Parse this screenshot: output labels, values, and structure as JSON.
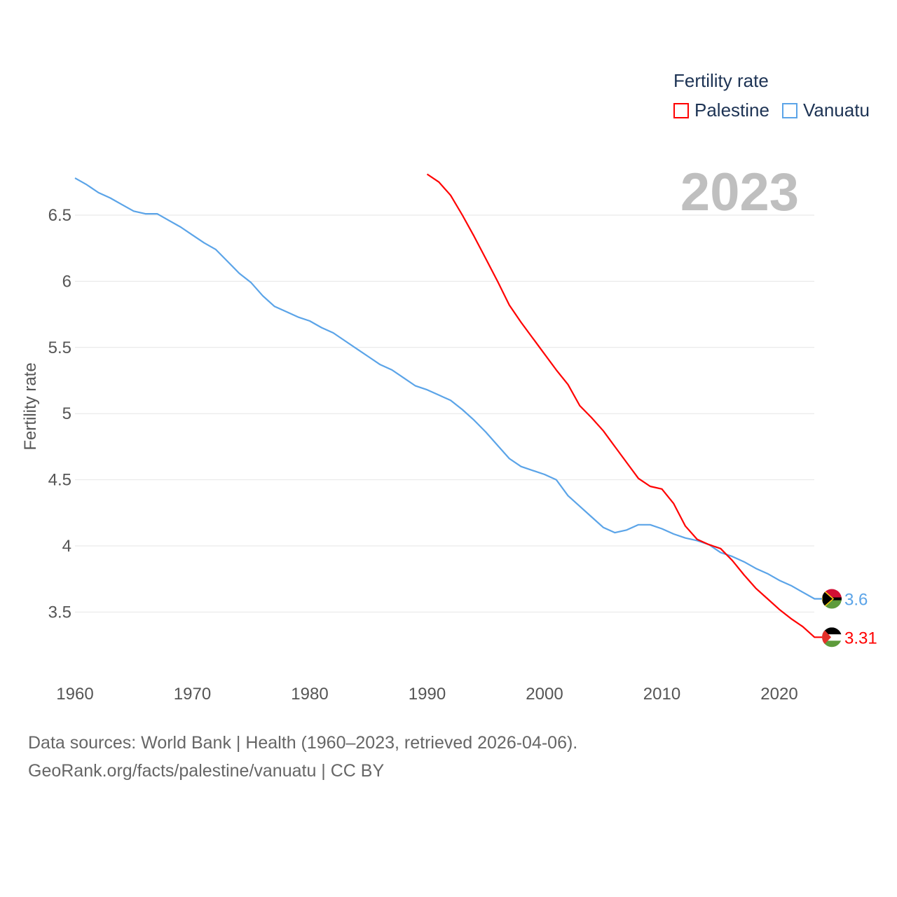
{
  "legend": {
    "title": "Fertility rate"
  },
  "footer": {
    "line1": "Data sources: World Bank | Health (1960–2023, retrieved 2026-04-06).",
    "line2": "GeoRank.org/facts/palestine/vanuatu | CC BY"
  },
  "chart_data": {
    "type": "line",
    "title": "",
    "year_label": "2023",
    "xlabel": "",
    "ylabel": "Fertility rate",
    "xlim": [
      1960,
      2023
    ],
    "ylim": [
      3.2,
      6.85
    ],
    "xticks": [
      1960,
      1970,
      1980,
      1990,
      2000,
      2010,
      2020
    ],
    "yticks": [
      3.5,
      4,
      4.5,
      5,
      5.5,
      6,
      6.5
    ],
    "ytick_labels": [
      "3.5",
      "4",
      "4.5",
      "5",
      "5.5",
      "6",
      "6.5"
    ],
    "xtick_labels": [
      "1960",
      "1970",
      "1980",
      "1990",
      "2000",
      "2010",
      "2020"
    ],
    "grid": true,
    "legend_position": "top-right",
    "series": [
      {
        "name": "Palestine",
        "color": "#ff0000",
        "end_label": "3.31",
        "flag": "palestine-flag",
        "x": [
          1990,
          1991,
          1992,
          1993,
          1994,
          1995,
          1996,
          1997,
          1998,
          1999,
          2000,
          2001,
          2002,
          2003,
          2004,
          2005,
          2006,
          2007,
          2008,
          2009,
          2010,
          2011,
          2012,
          2013,
          2014,
          2015,
          2016,
          2017,
          2018,
          2019,
          2020,
          2021,
          2022,
          2023
        ],
        "values": [
          6.81,
          6.75,
          6.65,
          6.5,
          6.34,
          6.17,
          6.0,
          5.82,
          5.69,
          5.57,
          5.45,
          5.33,
          5.22,
          5.06,
          4.97,
          4.87,
          4.75,
          4.63,
          4.51,
          4.45,
          4.43,
          4.32,
          4.15,
          4.05,
          4.01,
          3.98,
          3.89,
          3.78,
          3.68,
          3.6,
          3.52,
          3.45,
          3.39,
          3.31
        ]
      },
      {
        "name": "Vanuatu",
        "color": "#5ba4e8",
        "end_label": "3.6",
        "flag": "vanuatu-flag",
        "x": [
          1960,
          1961,
          1962,
          1963,
          1964,
          1965,
          1966,
          1967,
          1968,
          1969,
          1970,
          1971,
          1972,
          1973,
          1974,
          1975,
          1976,
          1977,
          1978,
          1979,
          1980,
          1981,
          1982,
          1983,
          1984,
          1985,
          1986,
          1987,
          1988,
          1989,
          1990,
          1991,
          1992,
          1993,
          1994,
          1995,
          1996,
          1997,
          1998,
          1999,
          2000,
          2001,
          2002,
          2003,
          2004,
          2005,
          2006,
          2007,
          2008,
          2009,
          2010,
          2011,
          2012,
          2013,
          2014,
          2015,
          2016,
          2017,
          2018,
          2019,
          2020,
          2021,
          2022,
          2023
        ],
        "values": [
          6.78,
          6.73,
          6.67,
          6.63,
          6.58,
          6.53,
          6.51,
          6.51,
          6.46,
          6.41,
          6.35,
          6.29,
          6.24,
          6.15,
          6.06,
          5.99,
          5.89,
          5.81,
          5.77,
          5.73,
          5.7,
          5.65,
          5.61,
          5.55,
          5.49,
          5.43,
          5.37,
          5.33,
          5.27,
          5.21,
          5.18,
          5.14,
          5.1,
          5.03,
          4.95,
          4.86,
          4.76,
          4.66,
          4.6,
          4.57,
          4.54,
          4.5,
          4.38,
          4.3,
          4.22,
          4.14,
          4.1,
          4.12,
          4.16,
          4.16,
          4.13,
          4.09,
          4.06,
          4.04,
          4.01,
          3.95,
          3.92,
          3.88,
          3.83,
          3.79,
          3.74,
          3.7,
          3.65,
          3.6
        ]
      }
    ]
  }
}
